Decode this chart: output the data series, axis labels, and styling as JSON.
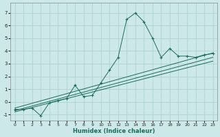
{
  "xlabel": "Humidex (Indice chaleur)",
  "bg_color": "#cce8e8",
  "line_color": "#1a6b5a",
  "grid_color": "#aacece",
  "xlim": [
    -0.5,
    23.5
  ],
  "ylim": [
    -1.5,
    7.8
  ],
  "xticks": [
    0,
    1,
    2,
    3,
    4,
    5,
    6,
    7,
    8,
    9,
    10,
    11,
    12,
    13,
    14,
    15,
    16,
    17,
    18,
    19,
    20,
    21,
    22,
    23
  ],
  "yticks": [
    -1,
    0,
    1,
    2,
    3,
    4,
    5,
    6,
    7
  ],
  "line1_x": [
    0,
    1,
    2,
    3,
    4,
    5,
    6,
    7,
    8,
    9,
    10,
    11,
    12,
    13,
    14,
    15,
    16,
    17,
    18,
    19,
    20,
    21,
    22,
    23
  ],
  "line1_y": [
    -0.6,
    -0.6,
    -0.5,
    -1.1,
    -0.1,
    0.1,
    0.25,
    1.3,
    0.4,
    0.5,
    1.5,
    2.5,
    3.5,
    6.5,
    7.0,
    6.3,
    5.0,
    3.5,
    4.2,
    3.6,
    3.6,
    3.5,
    3.7,
    3.8
  ],
  "line2_x": [
    0,
    23
  ],
  "line2_y": [
    -0.5,
    3.85
  ],
  "line3_x": [
    0,
    23
  ],
  "line3_y": [
    -0.7,
    3.5
  ],
  "line4_x": [
    0,
    23
  ],
  "line4_y": [
    -0.8,
    3.2
  ]
}
